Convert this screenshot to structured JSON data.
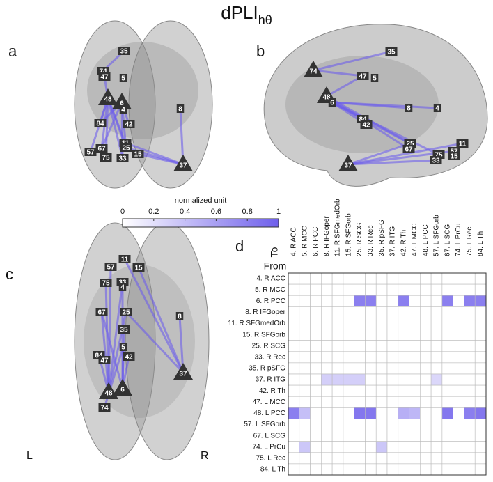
{
  "title": "dPLI",
  "title_subscript": "hθ",
  "panels": {
    "a": {
      "label": "a",
      "nodes": [
        "35",
        "74",
        "47",
        "5",
        "48",
        "6",
        "4",
        "8",
        "84",
        "42",
        "11",
        "25",
        "15",
        "57",
        "67",
        "75",
        "33",
        "37"
      ]
    },
    "b": {
      "label": "b",
      "nodes": [
        "35",
        "74",
        "47",
        "5",
        "48",
        "6",
        "8",
        "4",
        "84",
        "42",
        "25",
        "67",
        "11",
        "57",
        "75",
        "15",
        "33",
        "37"
      ]
    },
    "c": {
      "label": "c",
      "left": "L",
      "right": "R",
      "nodes": [
        "57",
        "11",
        "15",
        "75",
        "33",
        "4",
        "67",
        "25",
        "8",
        "35",
        "5",
        "84",
        "47",
        "42",
        "37",
        "48",
        "6",
        "74"
      ]
    },
    "d": {
      "label": "d"
    }
  },
  "colorbar": {
    "label": "normalized unit",
    "range": [
      0,
      1
    ],
    "ticks": [
      0,
      0.2,
      0.4,
      0.6,
      0.8,
      1
    ]
  },
  "matrix": {
    "to_label": "To",
    "from_label": "From",
    "columns": [
      "4. R ACC",
      "5. R MCC",
      "6. R PCC",
      "8. R IFGoper",
      "11. R SFGmedOrb",
      "15. R SFGorb",
      "25. R SCG",
      "33. R Rec",
      "35. R pSFG",
      "37. R ITG",
      "42. R Th",
      "47. L MCC",
      "48. L PCC",
      "57. L SFGorb",
      "67. L SCG",
      "74. L PrCu",
      "75. L Rec",
      "84. L Th"
    ],
    "rows": [
      "4. R ACC",
      "5. R MCC",
      "6. R PCC",
      "8. R IFGoper",
      "11. R SFGmedOrb",
      "15. R SFGorb",
      "25. R SCG",
      "33. R Rec",
      "35. R pSFG",
      "37. R ITG",
      "42. R Th",
      "47. L MCC",
      "48. L PCC",
      "57. L SFGorb",
      "67. L SCG",
      "74. L PrCu",
      "75. L Rec",
      "84. L Th"
    ],
    "values": [
      [
        0,
        0,
        0,
        0,
        0,
        0,
        0,
        0,
        0,
        0,
        0,
        0,
        0,
        0,
        0,
        0,
        0,
        0
      ],
      [
        0,
        0,
        0,
        0,
        0,
        0,
        0,
        0,
        0,
        0,
        0,
        0,
        0,
        0,
        0,
        0,
        0,
        0
      ],
      [
        0,
        0,
        0,
        0,
        0,
        0,
        0.8,
        0.8,
        0,
        0,
        0.8,
        0,
        0,
        0,
        0.8,
        0,
        0.8,
        0.8
      ],
      [
        0,
        0,
        0,
        0,
        0,
        0,
        0,
        0,
        0,
        0,
        0,
        0,
        0,
        0,
        0,
        0,
        0,
        0
      ],
      [
        0,
        0,
        0,
        0,
        0,
        0,
        0,
        0,
        0,
        0,
        0,
        0,
        0,
        0,
        0,
        0,
        0,
        0
      ],
      [
        0,
        0,
        0,
        0,
        0,
        0,
        0,
        0,
        0,
        0,
        0,
        0,
        0,
        0,
        0,
        0,
        0,
        0
      ],
      [
        0,
        0,
        0,
        0,
        0,
        0,
        0,
        0,
        0,
        0,
        0,
        0,
        0,
        0,
        0,
        0,
        0,
        0
      ],
      [
        0,
        0,
        0,
        0,
        0,
        0,
        0,
        0,
        0,
        0,
        0,
        0,
        0,
        0,
        0,
        0,
        0,
        0
      ],
      [
        0,
        0,
        0,
        0,
        0,
        0,
        0,
        0,
        0,
        0,
        0,
        0,
        0,
        0,
        0,
        0,
        0,
        0
      ],
      [
        0,
        0,
        0,
        0.3,
        0.3,
        0.3,
        0.3,
        0,
        0,
        0,
        0,
        0,
        0,
        0.25,
        0,
        0,
        0,
        0
      ],
      [
        0,
        0,
        0,
        0,
        0,
        0,
        0,
        0,
        0,
        0,
        0,
        0,
        0,
        0,
        0,
        0,
        0,
        0
      ],
      [
        0,
        0,
        0,
        0,
        0,
        0,
        0,
        0,
        0,
        0,
        0,
        0,
        0,
        0,
        0,
        0,
        0,
        0
      ],
      [
        0.8,
        0.4,
        0,
        0,
        0,
        0,
        0.85,
        0.85,
        0,
        0,
        0.5,
        0.45,
        0,
        0,
        0.85,
        0,
        0.8,
        0.85
      ],
      [
        0,
        0,
        0,
        0,
        0,
        0,
        0,
        0,
        0,
        0,
        0,
        0,
        0,
        0,
        0,
        0,
        0,
        0
      ],
      [
        0,
        0,
        0,
        0,
        0,
        0,
        0,
        0,
        0,
        0,
        0,
        0,
        0,
        0,
        0,
        0,
        0,
        0
      ],
      [
        0,
        0.35,
        0,
        0,
        0,
        0,
        0,
        0,
        0.35,
        0,
        0,
        0,
        0,
        0,
        0,
        0,
        0,
        0
      ],
      [
        0,
        0,
        0,
        0,
        0,
        0,
        0,
        0,
        0,
        0,
        0,
        0,
        0,
        0,
        0,
        0,
        0,
        0
      ],
      [
        0,
        0,
        0,
        0,
        0,
        0,
        0,
        0,
        0,
        0,
        0,
        0,
        0,
        0,
        0,
        0,
        0,
        0
      ]
    ]
  }
}
